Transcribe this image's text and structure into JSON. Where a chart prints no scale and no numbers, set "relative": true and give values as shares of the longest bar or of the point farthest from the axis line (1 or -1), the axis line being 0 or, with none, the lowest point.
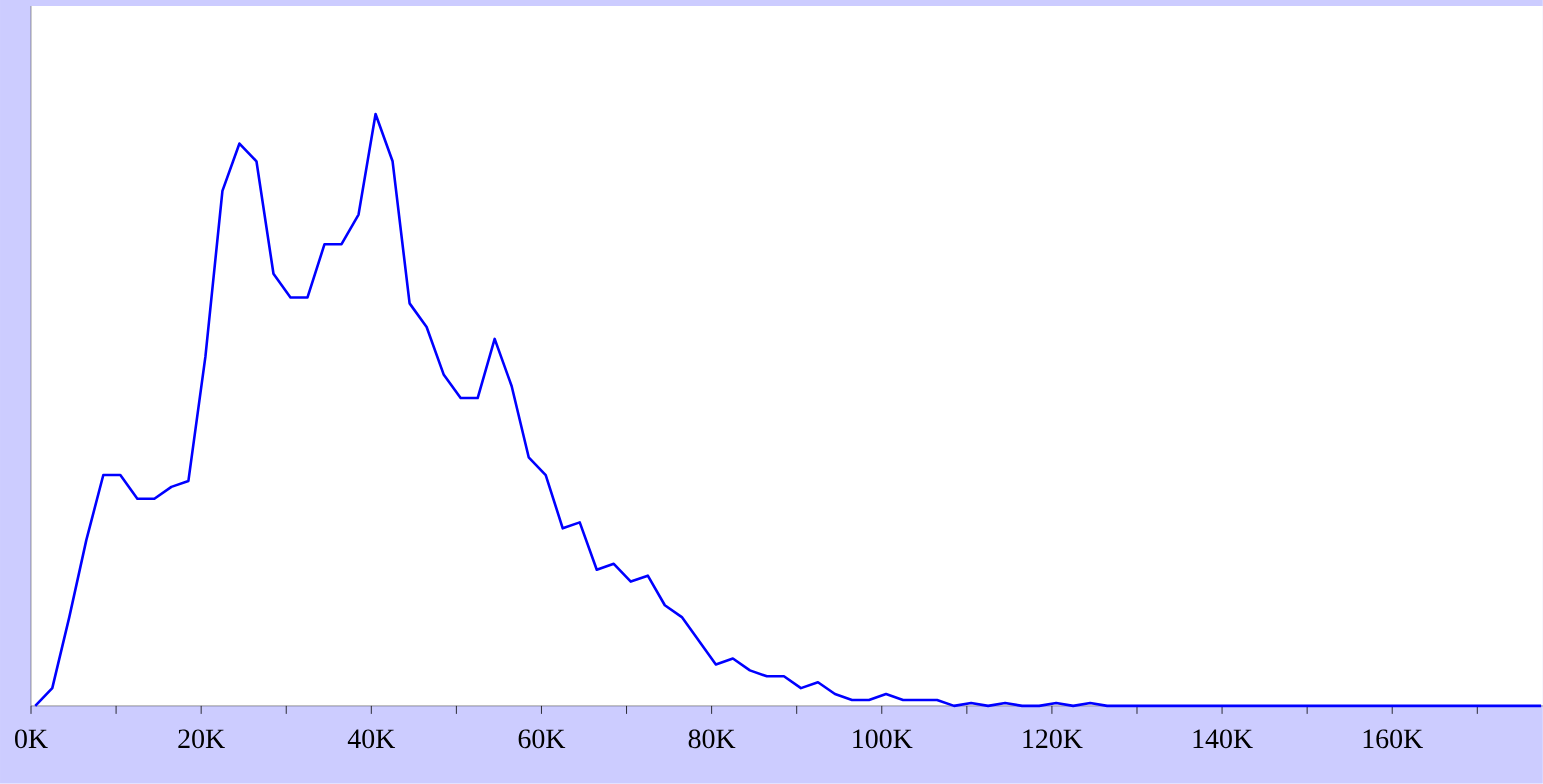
{
  "chart_data": {
    "type": "line",
    "relative": true,
    "color": "#0000ff",
    "x": [
      500,
      2500,
      4500,
      6500,
      8500,
      10500,
      12500,
      14500,
      16500,
      18500,
      20500,
      22500,
      24500,
      26500,
      28500,
      30500,
      32500,
      34500,
      36500,
      38500,
      40500,
      42500,
      44500,
      46500,
      48500,
      50500,
      52500,
      54500,
      56500,
      58500,
      60500,
      62500,
      64500,
      66500,
      68500,
      70500,
      72500,
      74500,
      76500,
      78500,
      80500,
      82500,
      84500,
      86500,
      88500,
      90500,
      92500,
      94500,
      96500,
      98500,
      100500,
      102500,
      104500,
      106500,
      108500,
      110500,
      112500,
      114500,
      116500,
      118500,
      120500,
      122500,
      124500,
      126500,
      177500
    ],
    "values": [
      0,
      0.03,
      0.15,
      0.28,
      0.39,
      0.39,
      0.35,
      0.35,
      0.37,
      0.38,
      0.59,
      0.87,
      0.95,
      0.92,
      0.73,
      0.69,
      0.69,
      0.78,
      0.78,
      0.83,
      1,
      0.92,
      0.68,
      0.64,
      0.56,
      0.52,
      0.52,
      0.62,
      0.54,
      0.42,
      0.39,
      0.3,
      0.31,
      0.23,
      0.24,
      0.21,
      0.22,
      0.17,
      0.15,
      0.11,
      0.07,
      0.08,
      0.06,
      0.05,
      0.05,
      0.03,
      0.04,
      0.02,
      0.01,
      0.01,
      0.02,
      0.01,
      0.01,
      0.01,
      0,
      0.005,
      0,
      0.005,
      0,
      0,
      0.005,
      0,
      0.005,
      0,
      0
    ],
    "xlim": [
      0,
      177700
    ],
    "xticks": [
      {
        "value": 0,
        "label": "0K"
      },
      {
        "value": 10000,
        "label": null
      },
      {
        "value": 20000,
        "label": "20K"
      },
      {
        "value": 30000,
        "label": null
      },
      {
        "value": 40000,
        "label": "40K"
      },
      {
        "value": 50000,
        "label": null
      },
      {
        "value": 60000,
        "label": "60K"
      },
      {
        "value": 70000,
        "label": null
      },
      {
        "value": 80000,
        "label": "80K"
      },
      {
        "value": 90000,
        "label": null
      },
      {
        "value": 100000,
        "label": "100K"
      },
      {
        "value": 110000,
        "label": null
      },
      {
        "value": 120000,
        "label": "120K"
      },
      {
        "value": 130000,
        "label": null
      },
      {
        "value": 140000,
        "label": "140K"
      },
      {
        "value": 150000,
        "label": null
      },
      {
        "value": 160000,
        "label": "160K"
      },
      {
        "value": 170000,
        "label": null
      }
    ]
  }
}
